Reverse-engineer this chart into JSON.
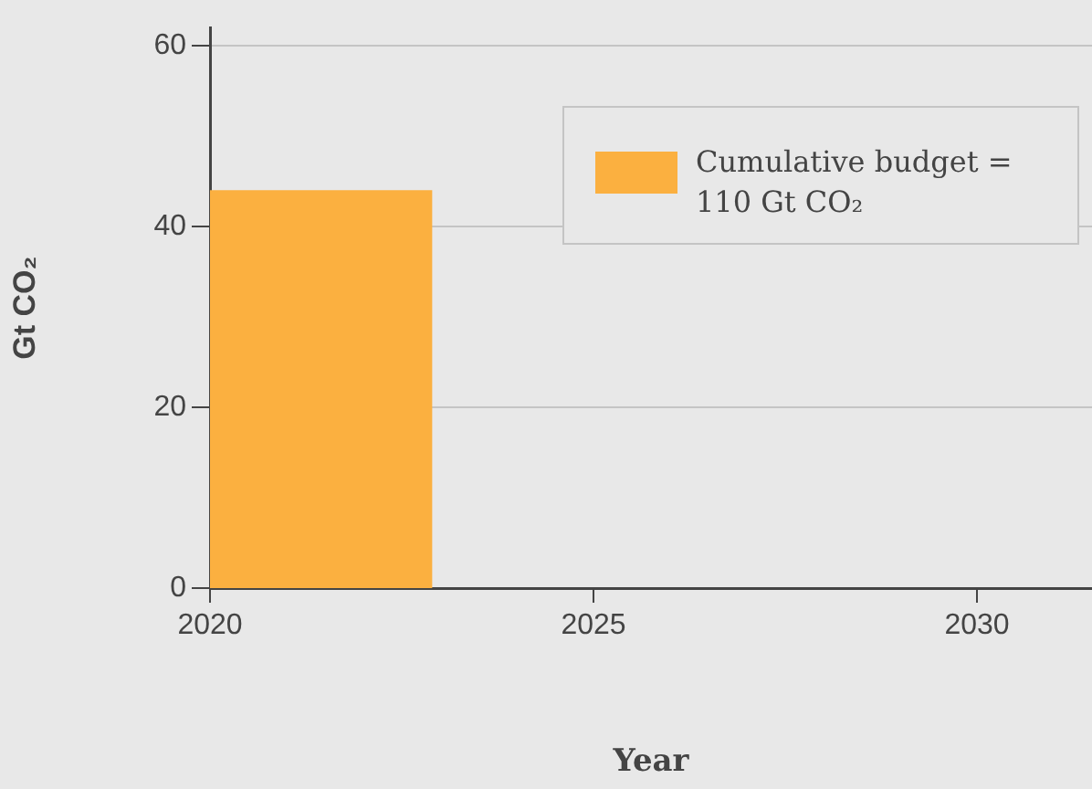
{
  "chart_data": {
    "type": "histogram",
    "xlabel": "Year",
    "ylabel": "Gt CO₂",
    "bins": [
      2020,
      2022.9
    ],
    "series": [
      {
        "name": "Cumulative budget = 110 Gt CO₂",
        "color": "#fbb040",
        "values": [
          44
        ]
      }
    ],
    "xlim": [
      2020,
      2031.5
    ],
    "xticks": [
      2020,
      2025,
      2030
    ],
    "ylim": [
      0,
      62
    ],
    "yticks": [
      0,
      20,
      40,
      60
    ],
    "grid": "y",
    "legend": "top right"
  }
}
